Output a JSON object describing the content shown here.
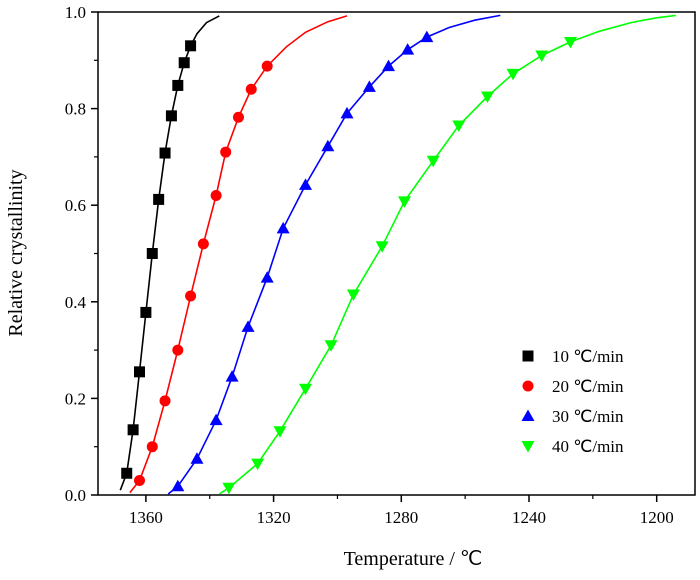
{
  "chart_data": {
    "type": "scatter",
    "title": "",
    "xlabel": "Temperature / ℃",
    "ylabel": "Relative crystallinity",
    "xlim": [
      1375,
      1188
    ],
    "ylim": [
      0,
      1
    ],
    "x_reversed": true,
    "xticks": [
      1360,
      1320,
      1280,
      1240,
      1200
    ],
    "yticks": [
      0.0,
      0.2,
      0.4,
      0.6,
      0.8,
      1.0
    ],
    "xtick_labels": [
      "1360",
      "1320",
      "1280",
      "1240",
      "1200"
    ],
    "ytick_labels": [
      "0.0",
      "0.2",
      "0.4",
      "0.6",
      "0.8",
      "1.0"
    ],
    "grid": false,
    "legend_position": "bottom-right",
    "series": [
      {
        "name": "10 ℃/min",
        "color": "#000000",
        "marker": "square",
        "points": [
          [
            1366,
            0.045
          ],
          [
            1364,
            0.135
          ],
          [
            1362,
            0.255
          ],
          [
            1360,
            0.378
          ],
          [
            1358,
            0.5
          ],
          [
            1356,
            0.612
          ],
          [
            1354,
            0.708
          ],
          [
            1352,
            0.785
          ],
          [
            1350,
            0.848
          ],
          [
            1348,
            0.895
          ],
          [
            1346,
            0.93
          ]
        ],
        "curve": [
          [
            1368,
            0.01
          ],
          [
            1366,
            0.045
          ],
          [
            1364,
            0.135
          ],
          [
            1362,
            0.255
          ],
          [
            1360,
            0.378
          ],
          [
            1358,
            0.5
          ],
          [
            1356,
            0.612
          ],
          [
            1354,
            0.708
          ],
          [
            1352,
            0.785
          ],
          [
            1350,
            0.848
          ],
          [
            1348,
            0.895
          ],
          [
            1346,
            0.93
          ],
          [
            1344,
            0.955
          ],
          [
            1341,
            0.978
          ],
          [
            1337,
            0.992
          ]
        ]
      },
      {
        "name": "20 ℃/min",
        "color": "#ff0000",
        "marker": "circle",
        "points": [
          [
            1362,
            0.03
          ],
          [
            1358,
            0.1
          ],
          [
            1354,
            0.195
          ],
          [
            1350,
            0.3
          ],
          [
            1346,
            0.412
          ],
          [
            1342,
            0.52
          ],
          [
            1338,
            0.62
          ],
          [
            1335,
            0.71
          ],
          [
            1331,
            0.782
          ],
          [
            1327,
            0.84
          ],
          [
            1322,
            0.888
          ]
        ],
        "curve": [
          [
            1365,
            0.005
          ],
          [
            1362,
            0.03
          ],
          [
            1358,
            0.1
          ],
          [
            1354,
            0.195
          ],
          [
            1350,
            0.3
          ],
          [
            1346,
            0.412
          ],
          [
            1342,
            0.52
          ],
          [
            1338,
            0.62
          ],
          [
            1335,
            0.71
          ],
          [
            1331,
            0.782
          ],
          [
            1327,
            0.84
          ],
          [
            1322,
            0.888
          ],
          [
            1316,
            0.928
          ],
          [
            1310,
            0.958
          ],
          [
            1303,
            0.98
          ],
          [
            1297,
            0.992
          ]
        ]
      },
      {
        "name": "30 ℃/min",
        "color": "#0000ff",
        "marker": "triangle-up",
        "points": [
          [
            1350,
            0.018
          ],
          [
            1344,
            0.075
          ],
          [
            1338,
            0.155
          ],
          [
            1333,
            0.245
          ],
          [
            1328,
            0.348
          ],
          [
            1322,
            0.45
          ],
          [
            1317,
            0.552
          ],
          [
            1310,
            0.642
          ],
          [
            1303,
            0.722
          ],
          [
            1297,
            0.79
          ],
          [
            1290,
            0.845
          ],
          [
            1284,
            0.888
          ],
          [
            1278,
            0.922
          ],
          [
            1272,
            0.948
          ]
        ],
        "curve": [
          [
            1353,
            0.002
          ],
          [
            1350,
            0.018
          ],
          [
            1344,
            0.075
          ],
          [
            1338,
            0.155
          ],
          [
            1333,
            0.245
          ],
          [
            1328,
            0.348
          ],
          [
            1322,
            0.45
          ],
          [
            1317,
            0.552
          ],
          [
            1310,
            0.642
          ],
          [
            1303,
            0.722
          ],
          [
            1297,
            0.79
          ],
          [
            1290,
            0.845
          ],
          [
            1284,
            0.888
          ],
          [
            1278,
            0.922
          ],
          [
            1272,
            0.948
          ],
          [
            1265,
            0.968
          ],
          [
            1257,
            0.983
          ],
          [
            1249,
            0.993
          ]
        ]
      },
      {
        "name": "40 ℃/min",
        "color": "#00ff00",
        "marker": "triangle-down",
        "points": [
          [
            1334,
            0.015
          ],
          [
            1325,
            0.065
          ],
          [
            1318,
            0.132
          ],
          [
            1310,
            0.22
          ],
          [
            1302,
            0.31
          ],
          [
            1295,
            0.415
          ],
          [
            1286,
            0.515
          ],
          [
            1279,
            0.608
          ],
          [
            1270,
            0.692
          ],
          [
            1262,
            0.765
          ],
          [
            1253,
            0.825
          ],
          [
            1245,
            0.872
          ],
          [
            1236,
            0.91
          ],
          [
            1227,
            0.938
          ]
        ],
        "curve": [
          [
            1337,
            0.002
          ],
          [
            1334,
            0.015
          ],
          [
            1325,
            0.065
          ],
          [
            1318,
            0.132
          ],
          [
            1310,
            0.22
          ],
          [
            1302,
            0.31
          ],
          [
            1295,
            0.415
          ],
          [
            1286,
            0.515
          ],
          [
            1279,
            0.608
          ],
          [
            1270,
            0.692
          ],
          [
            1262,
            0.765
          ],
          [
            1253,
            0.825
          ],
          [
            1245,
            0.872
          ],
          [
            1236,
            0.91
          ],
          [
            1227,
            0.938
          ],
          [
            1218,
            0.96
          ],
          [
            1208,
            0.978
          ],
          [
            1200,
            0.988
          ],
          [
            1194,
            0.993
          ]
        ]
      }
    ]
  }
}
